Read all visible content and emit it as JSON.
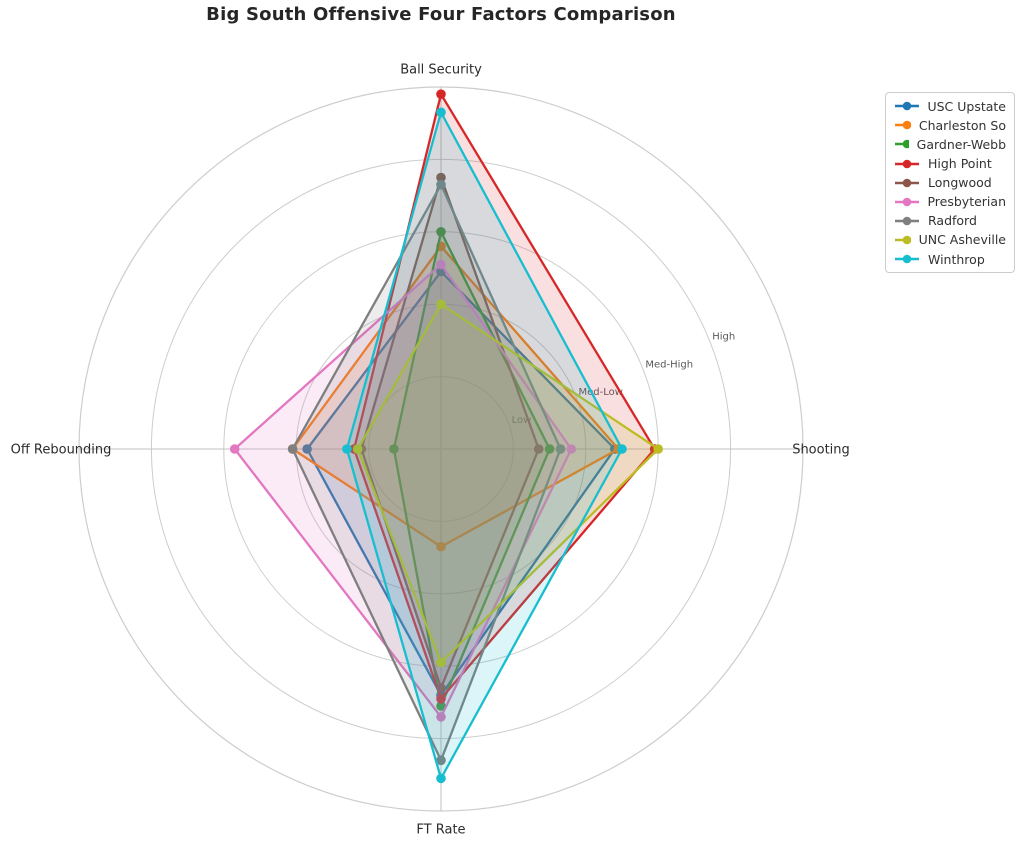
{
  "chart_data": {
    "type": "radar",
    "title": "Big South Offensive Four Factors Comparison",
    "categories": [
      "Ball Security",
      "Shooting",
      "FT Rate",
      "Off Rebounding"
    ],
    "category_angles_deg": [
      90,
      0,
      270,
      180
    ],
    "r_max": 100,
    "radial_ticks": [
      {
        "value": 20,
        "label": "Low"
      },
      {
        "value": 40,
        "label": "Med-Low"
      },
      {
        "value": 60,
        "label": "Med-High"
      },
      {
        "value": 80,
        "label": "High"
      }
    ],
    "rlabel_angle_deg": 22.5,
    "grid": true,
    "legend_position": "upper right",
    "series": [
      {
        "name": "USC Upstate",
        "color": "#1f77b4",
        "values": [
          49,
          48,
          68,
          37
        ]
      },
      {
        "name": "Charleston So",
        "color": "#ff7f0e",
        "values": [
          56,
          49,
          27,
          41
        ]
      },
      {
        "name": "Gardner-Webb",
        "color": "#2ca02c",
        "values": [
          60,
          30,
          71,
          13
        ]
      },
      {
        "name": "High Point",
        "color": "#d62728",
        "values": [
          98,
          59,
          69,
          24
        ]
      },
      {
        "name": "Longwood",
        "color": "#8c564b",
        "values": [
          75,
          27,
          66,
          22
        ]
      },
      {
        "name": "Presbyterian",
        "color": "#e377c2",
        "values": [
          51,
          36,
          74,
          57
        ]
      },
      {
        "name": "Radford",
        "color": "#7f7f7f",
        "values": [
          73,
          33,
          86,
          41
        ]
      },
      {
        "name": "UNC Asheville",
        "color": "#bcbd22",
        "values": [
          40,
          60,
          59,
          23
        ]
      },
      {
        "name": "Winthrop",
        "color": "#17becf",
        "values": [
          93,
          50,
          91,
          26
        ]
      }
    ],
    "style": {
      "grid_color": "#cdcdcd",
      "spoke_color": "#c2c2c2",
      "fill_opacity": 0.15,
      "line_width": 2.3,
      "marker_radius": 4.8,
      "title_color": "#262626",
      "category_label_color": "#2b2b2b",
      "tick_label_color": "#595959",
      "legend_border_color": "#cccccc"
    }
  }
}
